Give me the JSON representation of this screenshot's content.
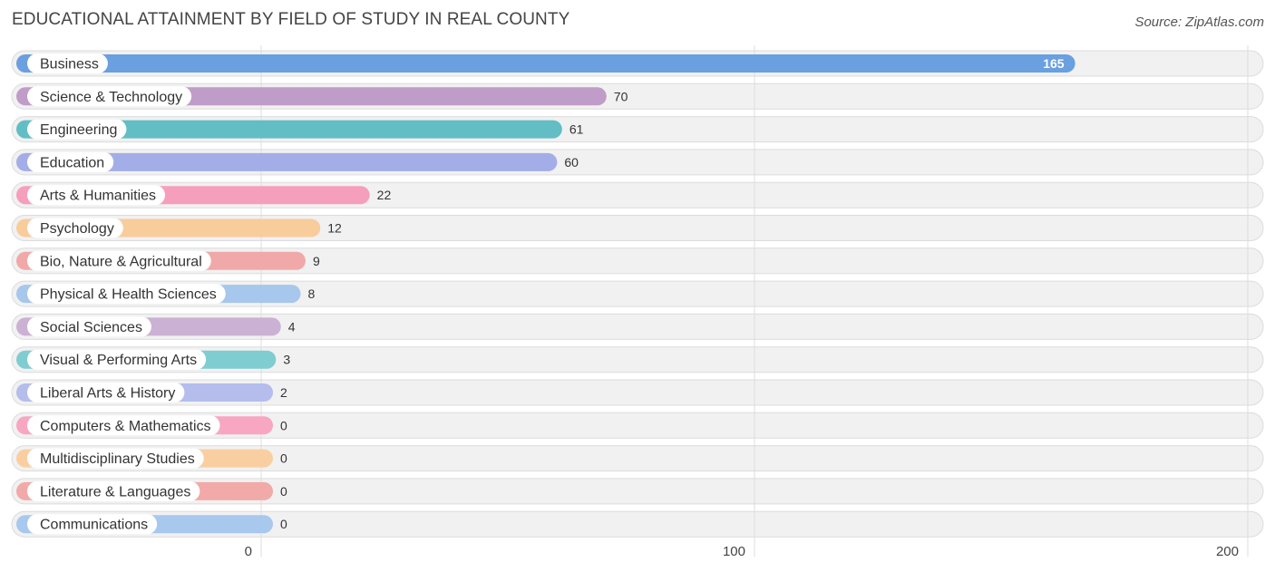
{
  "header": {
    "title": "EDUCATIONAL ATTAINMENT BY FIELD OF STUDY IN REAL COUNTY",
    "source": "Source: ZipAtlas.com"
  },
  "chart_data": {
    "type": "bar",
    "orientation": "horizontal",
    "title": "EDUCATIONAL ATTAINMENT BY FIELD OF STUDY IN REAL COUNTY",
    "xlabel": "",
    "ylabel": "",
    "xlim": [
      0,
      200
    ],
    "xticks": [
      0,
      100,
      200
    ],
    "grid": true,
    "categories": [
      "Business",
      "Science & Technology",
      "Engineering",
      "Education",
      "Arts & Humanities",
      "Psychology",
      "Bio, Nature & Agricultural",
      "Physical & Health Sciences",
      "Social Sciences",
      "Visual & Performing Arts",
      "Liberal Arts & History",
      "Computers & Mathematics",
      "Multidisciplinary Studies",
      "Literature & Languages",
      "Communications"
    ],
    "values": [
      165,
      70,
      61,
      60,
      22,
      12,
      9,
      8,
      4,
      3,
      2,
      0,
      0,
      0,
      0
    ],
    "colors": [
      "#6a9fe0",
      "#c09cc8",
      "#62bec4",
      "#a3aee8",
      "#f59fbc",
      "#f9cc9c",
      "#f0a9a8",
      "#a7c7ec",
      "#cbb1d4",
      "#7fcdd0",
      "#b4bdec",
      "#f7a7c2",
      "#f9cfa2",
      "#f1aaa8",
      "#a8c8ee"
    ]
  }
}
